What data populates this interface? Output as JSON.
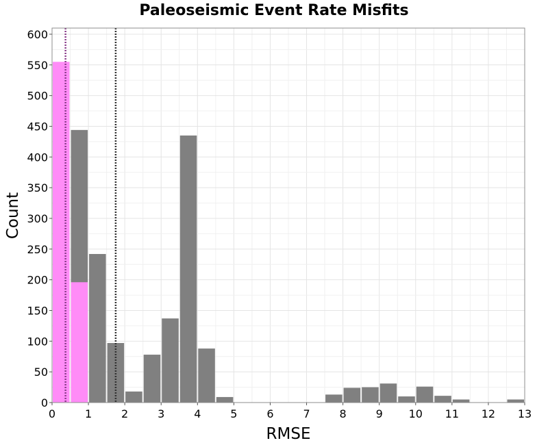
{
  "chart_data": {
    "type": "bar",
    "title": "Paleoseismic Event Rate Misfits",
    "xlabel": "RMSE",
    "ylabel": "Count",
    "xlim": [
      0,
      13
    ],
    "ylim": [
      0,
      610
    ],
    "xticks": [
      0,
      1,
      2,
      3,
      4,
      5,
      6,
      7,
      8,
      9,
      10,
      11,
      12,
      13
    ],
    "yticks": [
      0,
      50,
      100,
      150,
      200,
      250,
      300,
      350,
      400,
      450,
      500,
      550,
      600
    ],
    "grid": true,
    "bin_width": 0.5,
    "bin_starts": [
      0,
      0.5,
      1,
      1.5,
      2,
      2.5,
      3,
      3.5,
      4,
      4.5,
      5,
      5.5,
      6,
      6.5,
      7,
      7.5,
      8,
      8.5,
      9,
      9.5,
      10,
      10.5,
      11,
      11.5,
      12,
      12.5
    ],
    "series": [
      {
        "color": "#808080",
        "values": [
          0,
          444,
          242,
          97,
          18,
          78,
          137,
          435,
          88,
          9,
          0,
          0,
          0,
          0,
          0,
          13,
          24,
          25,
          31,
          10,
          26,
          11,
          5,
          0,
          0,
          5
        ]
      },
      {
        "color": "#ff8cf7",
        "values": [
          555,
          196,
          0,
          0,
          0,
          0,
          0,
          0,
          0,
          0,
          0,
          0,
          0,
          0,
          0,
          0,
          0,
          0,
          0,
          0,
          0,
          0,
          0,
          0,
          0,
          0
        ]
      }
    ],
    "reference_lines": [
      {
        "x": 0.37,
        "color": "#8a3c8a",
        "style": "dotted"
      },
      {
        "x": 1.75,
        "color": "#333333",
        "style": "dotted"
      }
    ]
  }
}
